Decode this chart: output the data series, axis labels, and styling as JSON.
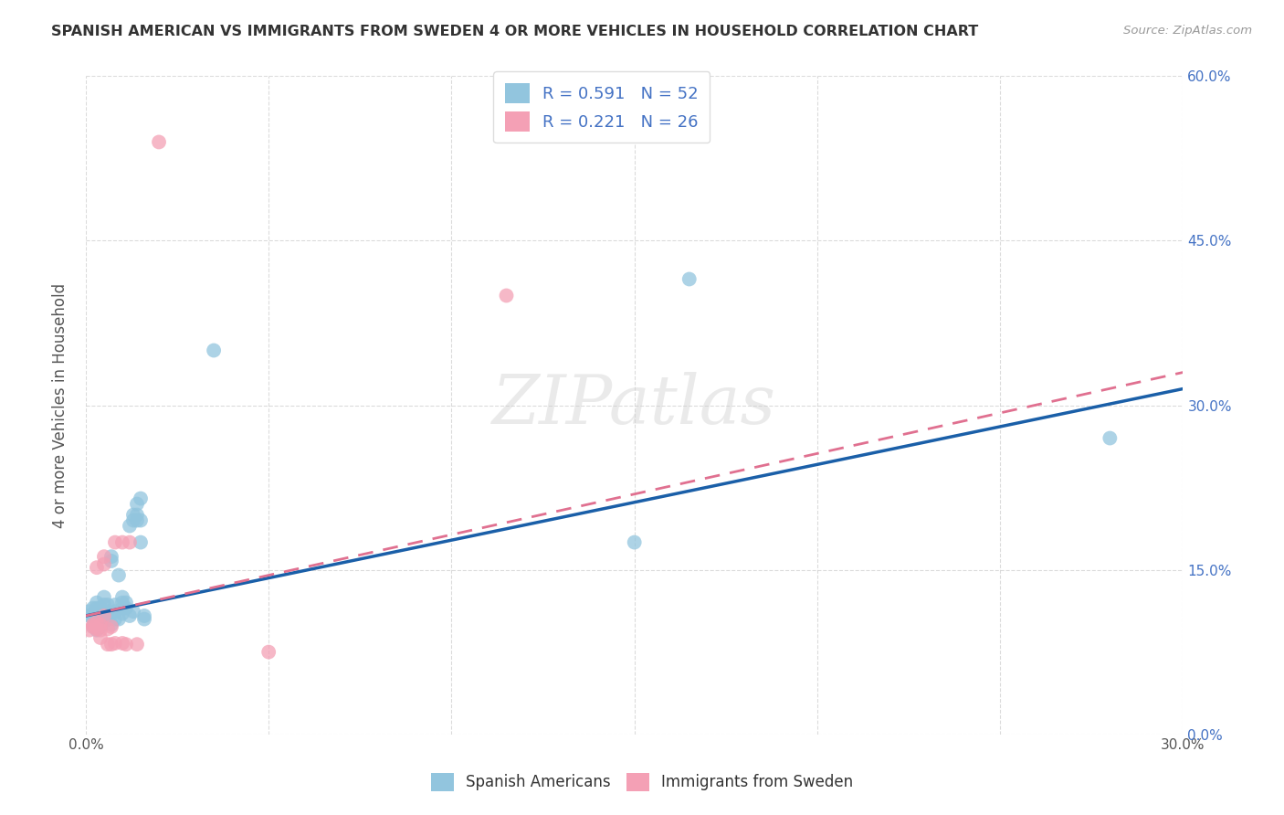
{
  "title": "SPANISH AMERICAN VS IMMIGRANTS FROM SWEDEN 4 OR MORE VEHICLES IN HOUSEHOLD CORRELATION CHART",
  "source": "Source: ZipAtlas.com",
  "xlabel_ticks_pos": [
    0.0,
    0.3
  ],
  "xlabel_ticks_labels": [
    "0.0%",
    "30.0%"
  ],
  "ylabel_ticks": [
    "0.0%",
    "15.0%",
    "30.0%",
    "45.0%",
    "60.0%"
  ],
  "ylabel_label": "4 or more Vehicles in Household",
  "legend_label1": "Spanish Americans",
  "legend_label2": "Immigrants from Sweden",
  "R1": "0.591",
  "N1": "52",
  "R2": "0.221",
  "N2": "26",
  "color_blue": "#92c5de",
  "color_pink": "#f4a0b5",
  "trendline_blue": "#1a5fa8",
  "trendline_pink": "#e07090",
  "background": "#ffffff",
  "watermark": "ZIPatlas",
  "xlim": [
    0.0,
    0.3
  ],
  "ylim": [
    0.0,
    0.6
  ],
  "grid_xticks": [
    0.0,
    0.05,
    0.1,
    0.15,
    0.2,
    0.25,
    0.3
  ],
  "grid_yticks": [
    0.0,
    0.15,
    0.3,
    0.45,
    0.6
  ],
  "blue_dots": [
    [
      0.001,
      0.108
    ],
    [
      0.001,
      0.112
    ],
    [
      0.002,
      0.098
    ],
    [
      0.002,
      0.105
    ],
    [
      0.002,
      0.11
    ],
    [
      0.002,
      0.115
    ],
    [
      0.003,
      0.095
    ],
    [
      0.003,
      0.1
    ],
    [
      0.003,
      0.108
    ],
    [
      0.003,
      0.115
    ],
    [
      0.003,
      0.12
    ],
    [
      0.004,
      0.098
    ],
    [
      0.004,
      0.103
    ],
    [
      0.004,
      0.108
    ],
    [
      0.004,
      0.115
    ],
    [
      0.005,
      0.11
    ],
    [
      0.005,
      0.118
    ],
    [
      0.005,
      0.125
    ],
    [
      0.006,
      0.105
    ],
    [
      0.006,
      0.112
    ],
    [
      0.006,
      0.118
    ],
    [
      0.007,
      0.158
    ],
    [
      0.007,
      0.162
    ],
    [
      0.007,
      0.1
    ],
    [
      0.008,
      0.105
    ],
    [
      0.008,
      0.112
    ],
    [
      0.008,
      0.118
    ],
    [
      0.009,
      0.145
    ],
    [
      0.009,
      0.105
    ],
    [
      0.01,
      0.11
    ],
    [
      0.01,
      0.115
    ],
    [
      0.01,
      0.12
    ],
    [
      0.01,
      0.125
    ],
    [
      0.011,
      0.115
    ],
    [
      0.011,
      0.12
    ],
    [
      0.012,
      0.108
    ],
    [
      0.012,
      0.19
    ],
    [
      0.013,
      0.112
    ],
    [
      0.013,
      0.195
    ],
    [
      0.013,
      0.2
    ],
    [
      0.014,
      0.195
    ],
    [
      0.014,
      0.2
    ],
    [
      0.014,
      0.21
    ],
    [
      0.015,
      0.175
    ],
    [
      0.015,
      0.195
    ],
    [
      0.015,
      0.215
    ],
    [
      0.016,
      0.105
    ],
    [
      0.016,
      0.108
    ],
    [
      0.035,
      0.35
    ],
    [
      0.15,
      0.175
    ],
    [
      0.165,
      0.415
    ],
    [
      0.28,
      0.27
    ]
  ],
  "pink_dots": [
    [
      0.001,
      0.095
    ],
    [
      0.002,
      0.1
    ],
    [
      0.002,
      0.098
    ],
    [
      0.003,
      0.096
    ],
    [
      0.003,
      0.102
    ],
    [
      0.003,
      0.152
    ],
    [
      0.004,
      0.088
    ],
    [
      0.004,
      0.095
    ],
    [
      0.004,
      0.1
    ],
    [
      0.005,
      0.108
    ],
    [
      0.005,
      0.155
    ],
    [
      0.005,
      0.162
    ],
    [
      0.006,
      0.096
    ],
    [
      0.006,
      0.082
    ],
    [
      0.007,
      0.098
    ],
    [
      0.007,
      0.082
    ],
    [
      0.008,
      0.083
    ],
    [
      0.008,
      0.175
    ],
    [
      0.01,
      0.175
    ],
    [
      0.01,
      0.083
    ],
    [
      0.011,
      0.082
    ],
    [
      0.012,
      0.175
    ],
    [
      0.014,
      0.082
    ],
    [
      0.02,
      0.54
    ],
    [
      0.05,
      0.075
    ],
    [
      0.115,
      0.4
    ]
  ],
  "blue_line": [
    [
      0.0,
      0.108
    ],
    [
      0.3,
      0.315
    ]
  ],
  "pink_line": [
    [
      0.0,
      0.108
    ],
    [
      0.3,
      0.33
    ]
  ]
}
